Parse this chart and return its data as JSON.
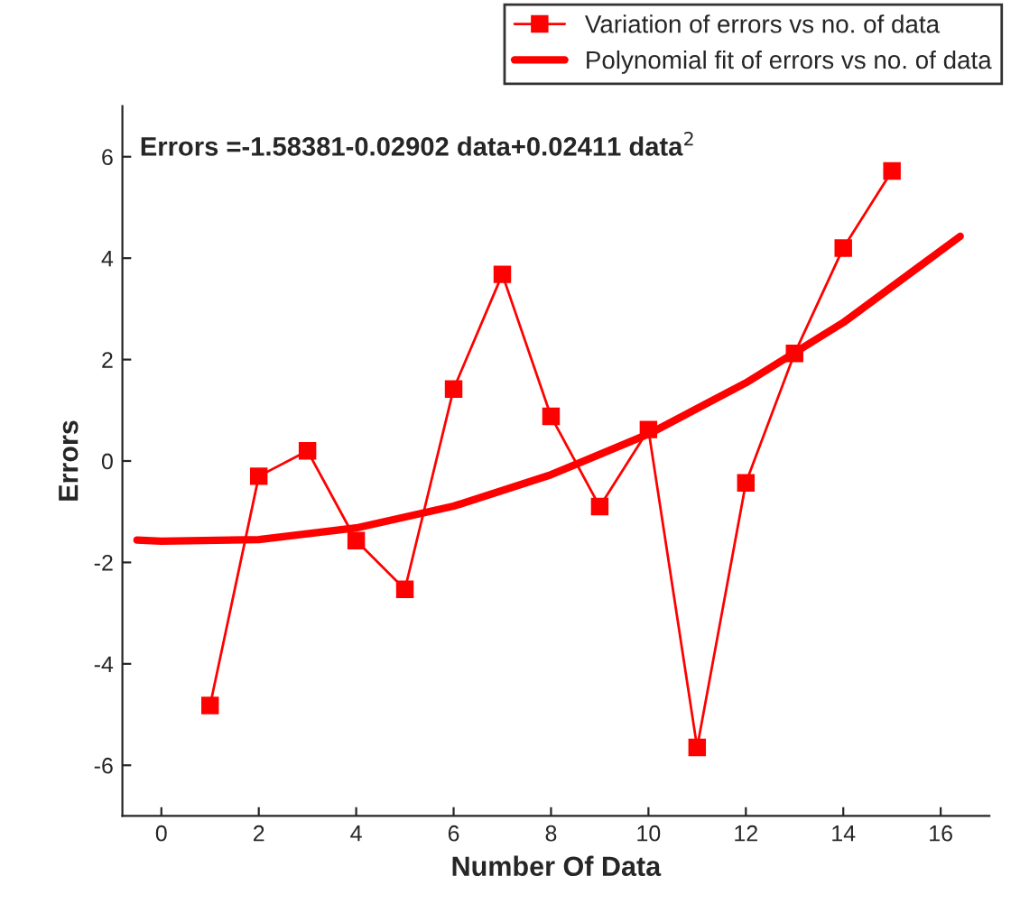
{
  "chart_data": {
    "type": "line",
    "xlabel": "Number Of Data",
    "ylabel": "Errors",
    "xlim": [
      -0.8,
      17
    ],
    "ylim": [
      -7,
      7
    ],
    "xticks": [
      0,
      2,
      4,
      6,
      8,
      10,
      12,
      14,
      16
    ],
    "yticks": [
      -6,
      -4,
      -2,
      0,
      2,
      4,
      6
    ],
    "grid": false,
    "legend": "top right",
    "annotations": [
      "Errors =-1.58381-0.02902 data+0.02411 data$^{2}$"
    ],
    "series": [
      {
        "name": "Variation of errors vs no. of data",
        "color": "#ff0000",
        "marker": "square",
        "line_style": "solid",
        "x": [
          1,
          2,
          3,
          4,
          5,
          6,
          7,
          8,
          9,
          10,
          11,
          12,
          13,
          14,
          15
        ],
        "values": [
          -4.82,
          -0.3,
          0.2,
          -1.57,
          -2.53,
          1.42,
          3.68,
          0.88,
          -0.9,
          0.62,
          -5.65,
          -0.43,
          2.12,
          4.2,
          5.72
        ]
      },
      {
        "name": "Polynomial fit of errors vs no. of data",
        "color": "#ff0000",
        "marker": "none",
        "line_style": "solid",
        "x": [
          -0.5,
          0,
          2,
          4,
          6,
          8,
          10,
          12,
          14,
          16.4
        ],
        "values": [
          -1.56,
          -1.58,
          -1.55,
          -1.32,
          -0.89,
          -0.27,
          0.53,
          1.54,
          2.73,
          4.43
        ]
      }
    ]
  }
}
